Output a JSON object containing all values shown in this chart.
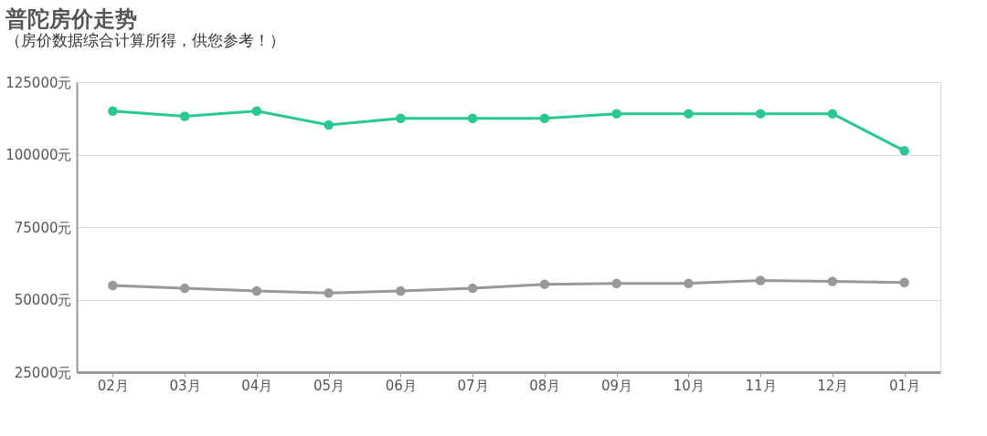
{
  "chart_data": {
    "type": "line",
    "title": "普陀房价走势",
    "subtitle": "（房价数据综合计算所得，供您参考！）",
    "categories": [
      "02月",
      "03月",
      "04月",
      "05月",
      "06月",
      "07月",
      "08月",
      "09月",
      "10月",
      "11月",
      "12月",
      "01月"
    ],
    "series": [
      {
        "color": "#27c98e",
        "values": [
          115000,
          113200,
          115000,
          110200,
          112500,
          112500,
          112500,
          114100,
          114100,
          114100,
          114100,
          101300
        ]
      },
      {
        "color": "#999999",
        "values": [
          54900,
          53900,
          53000,
          52300,
          53000,
          53900,
          55300,
          55600,
          55600,
          56600,
          56300,
          55900
        ]
      }
    ],
    "ylim": [
      25000,
      125000
    ],
    "yticks": [
      {
        "value": 25000,
        "label": "25000元"
      },
      {
        "value": 50000,
        "label": "50000元"
      },
      {
        "value": 75000,
        "label": "75000元"
      },
      {
        "value": 100000,
        "label": "100000元"
      },
      {
        "value": 125000,
        "label": "125000元"
      }
    ],
    "grid": "y",
    "marker": "circle",
    "line_style": "solid",
    "legend": false
  }
}
